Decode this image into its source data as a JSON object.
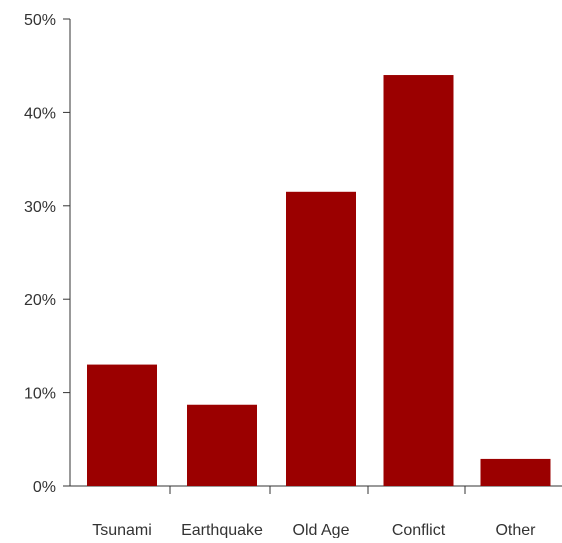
{
  "chart_data": {
    "type": "bar",
    "categories": [
      "Tsunami",
      "Earthquake",
      "Old Age",
      "Conflict",
      "Other"
    ],
    "values": [
      13,
      8.7,
      31.5,
      44,
      2.9
    ],
    "title": "",
    "xlabel": "",
    "ylabel": "",
    "ylim": [
      0,
      50
    ],
    "yticks": [
      0,
      10,
      20,
      30,
      40,
      50
    ],
    "ytick_labels": [
      "0%",
      "10%",
      "20%",
      "30%",
      "40%",
      "50%"
    ],
    "grid": false,
    "legend": "none",
    "colors": {
      "bar": "#9b0000",
      "axis": "#333333",
      "text": "#333333"
    }
  }
}
